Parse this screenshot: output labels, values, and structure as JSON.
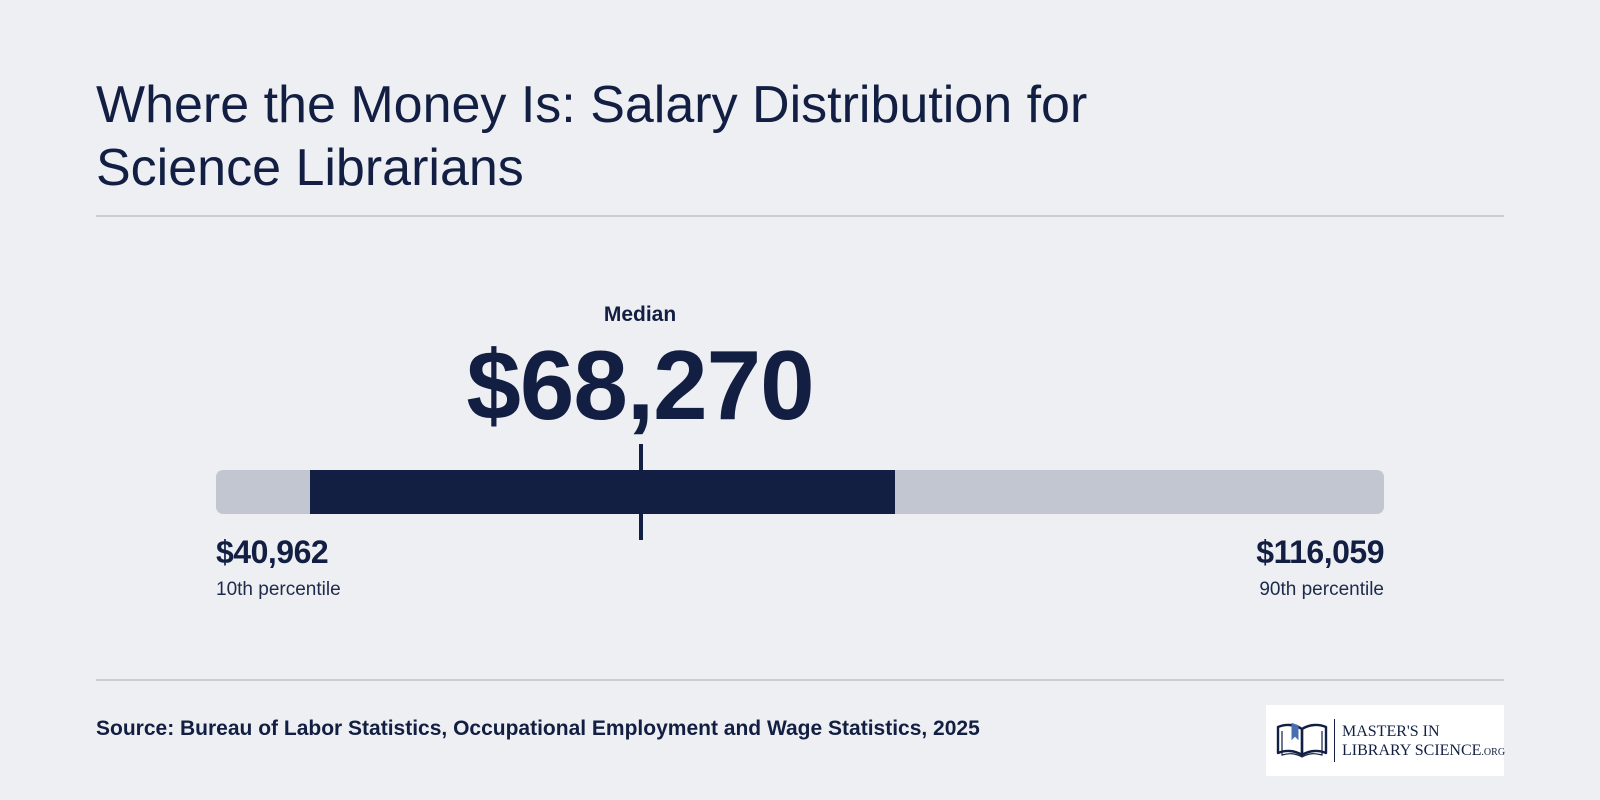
{
  "header": {
    "title": "Where the Money Is: Salary Distribution for Science Librarians"
  },
  "chart_data": {
    "type": "range",
    "median": {
      "label": "Median",
      "value": 68270,
      "display": "$68,270"
    },
    "low": {
      "label": "10th percentile",
      "value": 40962,
      "display": "$40,962"
    },
    "high": {
      "label": "90th percentile",
      "value": 116059,
      "display": "$116,059"
    },
    "highlight_range": [
      47000,
      84600
    ],
    "colors": {
      "track": "#c2c6d0",
      "highlight": "#121f42",
      "text": "#121f42",
      "background": "#eeeff3"
    }
  },
  "footer": {
    "source": "Source: Bureau of Labor Statistics, Occupational Employment and Wage Statistics, 2025",
    "logo": {
      "line1": "MASTER'S IN",
      "line2": "LIBRARY SCIENCE",
      "suffix": ".ORG",
      "icon": "open-book-icon"
    }
  }
}
